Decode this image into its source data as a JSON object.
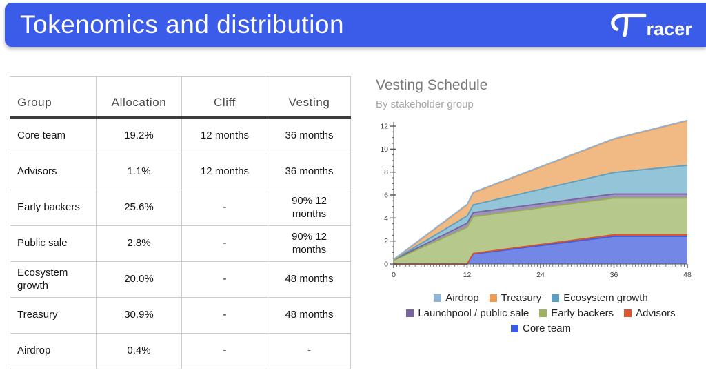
{
  "header": {
    "title": "Tokenomics and distribution",
    "brand": "racer",
    "brand_full": "Tracer"
  },
  "colors": {
    "header_background": "#3b5be9",
    "header_text": "#ffffff"
  },
  "table": {
    "columns": [
      "Group",
      "Allocation",
      "Cliff",
      "Vesting"
    ],
    "rows": [
      [
        "Core team",
        "19.2%",
        "12 months",
        "36 months"
      ],
      [
        "Advisors",
        "1.1%",
        "12 months",
        "36 months"
      ],
      [
        "Early backers",
        "25.6%",
        "-",
        "90% 12 months"
      ],
      [
        "Public sale",
        "2.8%",
        "-",
        "90% 12 months"
      ],
      [
        "Ecosystem growth",
        "20.0%",
        "-",
        "48 months"
      ],
      [
        "Treasury",
        "30.9%",
        "-",
        "48 months"
      ],
      [
        "Airdrop",
        "0.4%",
        "-",
        "-"
      ]
    ]
  },
  "chart_data": {
    "type": "area",
    "stacked": true,
    "title": "Vesting Schedule",
    "subtitle": "By stakeholder group",
    "xlabel": "",
    "ylabel": "",
    "xlim": [
      0,
      48
    ],
    "ylim": [
      0,
      12
    ],
    "x_ticks_major": [
      0,
      12,
      24,
      36,
      48
    ],
    "x_tick_minor_step": 0.5,
    "y_ticks_major": [
      0,
      2,
      4,
      6,
      8,
      10,
      12
    ],
    "y_tick_minor_step": 0.5,
    "grid": false,
    "legend_position": "bottom",
    "series": [
      {
        "key": "core-team",
        "name": "Core team",
        "stroke": "#3f5ddb",
        "fill": "#7287e6",
        "points": [
          [
            0,
            0
          ],
          [
            12,
            0
          ],
          [
            13,
            0.87
          ],
          [
            36,
            2.4
          ],
          [
            48,
            2.4
          ]
        ]
      },
      {
        "key": "advisors",
        "name": "Advisors",
        "stroke": "#d7512e",
        "fill": "#e0714e",
        "points": [
          [
            0,
            0
          ],
          [
            12,
            0
          ],
          [
            13,
            0.05
          ],
          [
            36,
            0.14
          ],
          [
            48,
            0.14
          ]
        ]
      },
      {
        "key": "early-backers",
        "name": "Early backers",
        "stroke": "#97ad55",
        "fill": "#b6c88c",
        "points": [
          [
            0,
            0.32
          ],
          [
            12,
            3.2
          ],
          [
            48,
            3.2
          ]
        ]
      },
      {
        "key": "launchpool-public-sale",
        "name": "Launchpool / public sale",
        "stroke": "#75639e",
        "fill": "#9e90bd",
        "points": [
          [
            0,
            0.04
          ],
          [
            12,
            0.35
          ],
          [
            48,
            0.35
          ]
        ]
      },
      {
        "key": "ecosystem-growth",
        "name": "Ecosystem growth",
        "stroke": "#5c9fc0",
        "fill": "#93c4d8",
        "points": [
          [
            0,
            0
          ],
          [
            48,
            2.5
          ]
        ]
      },
      {
        "key": "treasury",
        "name": "Treasury",
        "stroke": "#e9974e",
        "fill": "#f1ba85",
        "points": [
          [
            0,
            0
          ],
          [
            48,
            3.86
          ]
        ]
      },
      {
        "key": "airdrop",
        "name": "Airdrop",
        "stroke": "#90b4d6",
        "fill": "#b3cde2",
        "points": [
          [
            0,
            0.05
          ],
          [
            48,
            0.05
          ]
        ]
      }
    ],
    "legend_rows": [
      [
        {
          "label": "Airdrop",
          "color": "#8fb4d8"
        },
        {
          "label": "Treasury",
          "color": "#ec9c52"
        },
        {
          "label": "Ecosystem growth",
          "color": "#5d9fc3"
        }
      ],
      [
        {
          "label": "Launchpool / public sale",
          "color": "#77649f"
        },
        {
          "label": "Early backers",
          "color": "#9db25e"
        },
        {
          "label": "Advisors",
          "color": "#d95430"
        }
      ],
      [
        {
          "label": "Core team",
          "color": "#3b5ce2"
        }
      ]
    ]
  }
}
